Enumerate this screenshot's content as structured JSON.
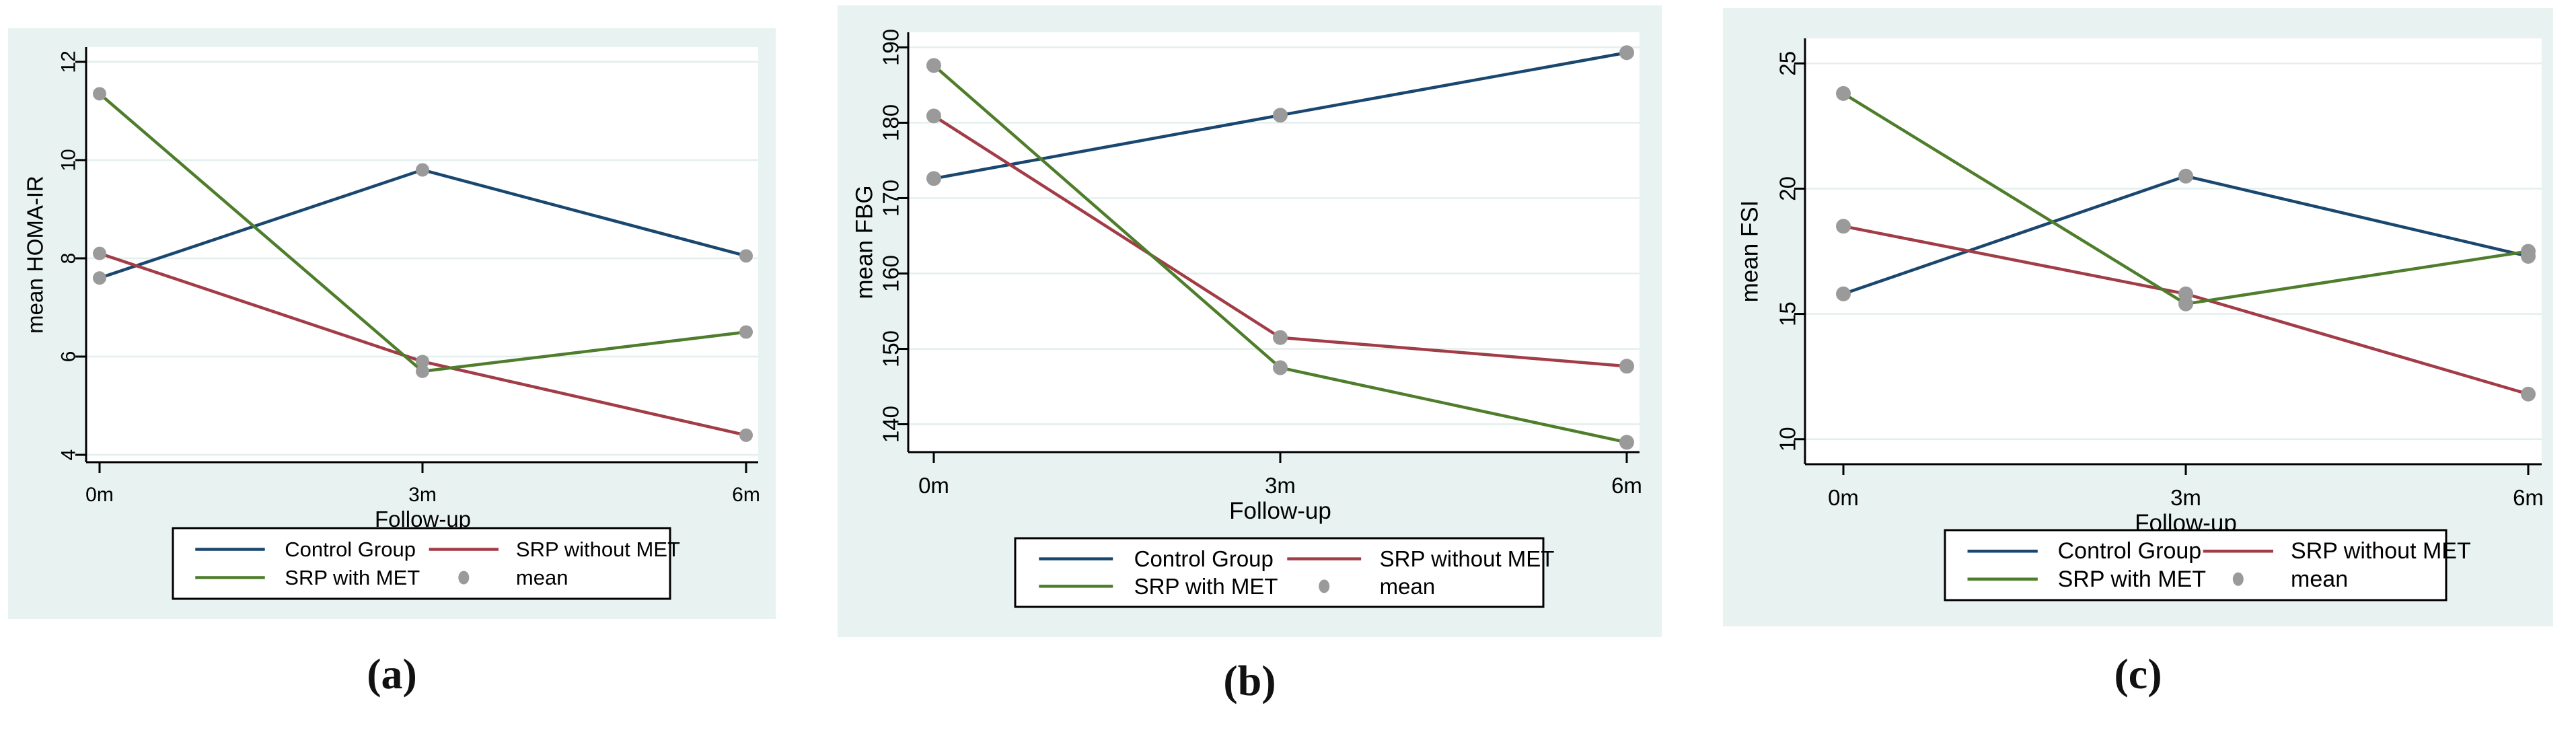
{
  "figure": {
    "type": "stata-line-figure",
    "xlabel": "Follow-up",
    "categories": [
      "0m",
      "3m",
      "6m"
    ],
    "legend_labels": [
      "Control Group",
      "SRP without MET",
      "SRP with MET",
      "mean"
    ]
  },
  "colors": {
    "navy": "#1a476f",
    "maroon": "#a23c47",
    "green": "#4e7d2b",
    "gray": "#9a9a9a",
    "panel_bg": "#e8f2f0",
    "plot_bg": "#ffffff",
    "grid": "#e3efed",
    "axis": "#000000",
    "legend_border": "#000000",
    "text": "#000000"
  },
  "chart_data": [
    {
      "type": "line",
      "caption": "(a)",
      "ylabel": "mean HOMA-IR",
      "xlabel": "Follow-up",
      "categories": [
        "0m",
        "3m",
        "6m"
      ],
      "yticks": [
        4,
        6,
        8,
        10,
        12
      ],
      "ylim": [
        3.85,
        12.3
      ],
      "grid": true,
      "legend_position": "bottom",
      "series": [
        {
          "name": "Control Group",
          "color": "navy",
          "values": [
            7.6,
            9.8,
            8.05
          ]
        },
        {
          "name": "SRP without MET",
          "color": "maroon",
          "values": [
            8.1,
            5.9,
            4.4
          ]
        },
        {
          "name": "SRP with MET",
          "color": "green",
          "values": [
            11.35,
            5.7,
            6.5
          ]
        }
      ],
      "markers": {
        "name": "mean",
        "color": "gray"
      },
      "legend": [
        "Control Group",
        "SRP without MET",
        "SRP with MET",
        "mean"
      ]
    },
    {
      "type": "line",
      "caption": "(b)",
      "ylabel": "mean FBG",
      "xlabel": "Follow-up",
      "categories": [
        "0m",
        "3m",
        "6m"
      ],
      "yticks": [
        140,
        150,
        160,
        170,
        180,
        190
      ],
      "ylim": [
        136.3,
        192.0
      ],
      "grid": true,
      "legend_position": "bottom",
      "series": [
        {
          "name": "Control Group",
          "color": "navy",
          "values": [
            172.6,
            181.0,
            189.3
          ]
        },
        {
          "name": "SRP without MET",
          "color": "maroon",
          "values": [
            180.9,
            151.5,
            147.7
          ]
        },
        {
          "name": "SRP with MET",
          "color": "green",
          "values": [
            187.6,
            147.5,
            137.6
          ]
        }
      ],
      "markers": {
        "name": "mean",
        "color": "gray"
      },
      "legend": [
        "Control Group",
        "SRP without MET",
        "SRP with MET",
        "mean"
      ]
    },
    {
      "type": "line",
      "caption": "(c)",
      "ylabel": "mean FSI",
      "xlabel": "Follow-up",
      "categories": [
        "0m",
        "3m",
        "6m"
      ],
      "yticks": [
        10,
        15,
        20,
        25
      ],
      "ylim": [
        9.0,
        26.0
      ],
      "grid": true,
      "legend_position": "bottom",
      "series": [
        {
          "name": "Control Group",
          "color": "navy",
          "values": [
            15.8,
            20.5,
            17.3
          ]
        },
        {
          "name": "SRP without MET",
          "color": "maroon",
          "values": [
            18.5,
            15.8,
            11.8
          ]
        },
        {
          "name": "SRP with MET",
          "color": "green",
          "values": [
            23.8,
            15.4,
            17.5
          ]
        }
      ],
      "markers": {
        "name": "mean",
        "color": "gray"
      },
      "legend": [
        "Control Group",
        "SRP without MET",
        "SRP with MET",
        "mean"
      ]
    }
  ]
}
